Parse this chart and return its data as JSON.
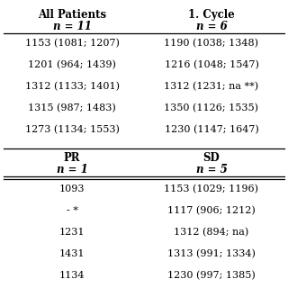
{
  "bg_color": "#ffffff",
  "text_color": "#000000",
  "col1_header": "All Patients",
  "col1_sub": "n = 11",
  "col2_header": "1. Cycle",
  "col2_sub": "n = 6",
  "col1_data_top": [
    "1153 (1081; 1207)",
    "1201 (964; 1439)",
    "1312 (1133; 1401)",
    "1315 (987; 1483)",
    "1273 (1134; 1553)"
  ],
  "col2_data_top": [
    "1190 (1038; 1348)",
    "1216 (1048; 1547)",
    "1312 (1231; na **)",
    "1350 (1126; 1535)",
    "1230 (1147; 1647)"
  ],
  "col3_header": "PR",
  "col3_sub": "n = 1",
  "col4_header": "SD",
  "col4_sub": "n = 5",
  "col3_data_bot": [
    "1093",
    "- *",
    "1231",
    "1431",
    "1134"
  ],
  "col4_data_bot": [
    "1153 (1029; 1196)",
    "1117 (906; 1212)",
    "1312 (894; na)",
    "1313 (991; 1334)",
    "1230 (997; 1385)"
  ]
}
